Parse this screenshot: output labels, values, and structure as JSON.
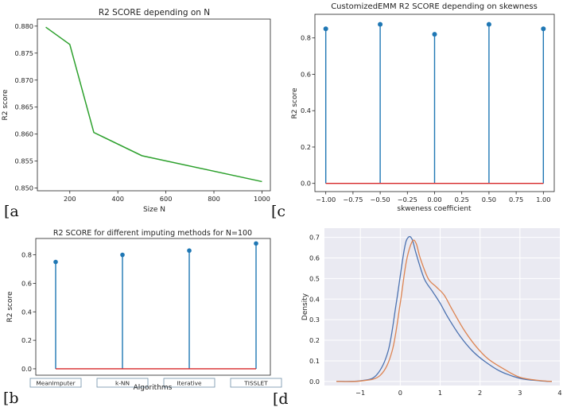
{
  "chart_data": [
    {
      "type": "line",
      "label": "[a",
      "title": "R2 SCORE depending on N",
      "xlabel": "Size N",
      "ylabel": "R2 score",
      "xlim": [
        65,
        1035
      ],
      "ylim": [
        0.8495,
        0.8813
      ],
      "xticks": [
        200,
        400,
        600,
        800,
        1000
      ],
      "yticks": [
        0.85,
        0.855,
        0.86,
        0.865,
        0.87,
        0.875,
        0.88
      ],
      "ytick_labels": [
        "0.850",
        "0.855",
        "0.860",
        "0.865",
        "0.870",
        "0.875",
        "0.880"
      ],
      "colors": {
        "line": "#2ca02c"
      },
      "series": [
        {
          "x": [
            100,
            200,
            300,
            500,
            1000
          ],
          "values": [
            0.8798,
            0.8766,
            0.8603,
            0.856,
            0.8512
          ]
        }
      ]
    },
    {
      "type": "stem",
      "label": "[c",
      "title": "CustomizedEMM R2 SCORE depending on skewness",
      "xlabel": "skweness coefficient",
      "ylabel": "R2 score",
      "xlim": [
        -1.1,
        1.1
      ],
      "ylim": [
        -0.045,
        0.93
      ],
      "xticks": [
        -1.0,
        -0.75,
        -0.5,
        -0.25,
        0.0,
        0.25,
        0.5,
        0.75,
        1.0
      ],
      "xtick_labels": [
        "−1.00",
        "−0.75",
        "−0.50",
        "−0.25",
        "0.00",
        "0.25",
        "0.50",
        "0.75",
        "1.00"
      ],
      "yticks": [
        0.0,
        0.2,
        0.4,
        0.6,
        0.8
      ],
      "ytick_labels": [
        "0.0",
        "0.2",
        "0.4",
        "0.6",
        "0.8"
      ],
      "colors": {
        "stem": "#1f77b4",
        "baseline": "#d62728"
      },
      "series": [
        {
          "x": [
            -1.0,
            -0.5,
            0.0,
            0.5,
            1.0
          ],
          "values": [
            0.85,
            0.875,
            0.82,
            0.875,
            0.85
          ]
        }
      ]
    },
    {
      "type": "stem",
      "label": "[b",
      "title": "R2 SCORE for different imputing methods for N=100",
      "xlabel": "Algorithms",
      "ylabel": "R2 score",
      "categories": [
        "MeanImputer",
        "k-NN",
        "Iterative",
        "TISSLET"
      ],
      "ylim": [
        -0.045,
        0.915
      ],
      "yticks": [
        0.0,
        0.2,
        0.4,
        0.6,
        0.8
      ],
      "ytick_labels": [
        "0.0",
        "0.2",
        "0.4",
        "0.6",
        "0.8"
      ],
      "colors": {
        "stem": "#1f77b4",
        "baseline": "#d62728"
      },
      "series": [
        {
          "values": [
            0.75,
            0.8,
            0.83,
            0.88
          ]
        }
      ]
    },
    {
      "type": "line",
      "label": "[d",
      "title": "",
      "xlabel": "",
      "ylabel": "Density",
      "xlim": [
        -1.9,
        4.0
      ],
      "ylim": [
        -0.02,
        0.745
      ],
      "xticks": [
        -1,
        0,
        1,
        2,
        3,
        4
      ],
      "xtick_labels": [
        "−1",
        "0",
        "1",
        "2",
        "3",
        "4"
      ],
      "yticks": [
        0.0,
        0.1,
        0.2,
        0.3,
        0.4,
        0.5,
        0.6,
        0.7
      ],
      "ytick_labels": [
        "0.0",
        "0.1",
        "0.2",
        "0.3",
        "0.4",
        "0.5",
        "0.6",
        "0.7"
      ],
      "grid": true,
      "colors": {
        "background": "#eaeaf2"
      },
      "series": [
        {
          "color": "#4c72b0",
          "x": [
            -1.6,
            -1.0,
            -0.6,
            -0.3,
            -0.1,
            0.1,
            0.2,
            0.3,
            0.4,
            0.6,
            0.8,
            1.0,
            1.2,
            1.5,
            1.8,
            2.1,
            2.5,
            3.0,
            3.5,
            3.8
          ],
          "values": [
            0.0,
            0.003,
            0.03,
            0.15,
            0.38,
            0.64,
            0.7,
            0.69,
            0.62,
            0.5,
            0.44,
            0.38,
            0.31,
            0.22,
            0.15,
            0.1,
            0.05,
            0.015,
            0.003,
            0.0
          ]
        },
        {
          "color": "#dd8452",
          "x": [
            -1.6,
            -1.0,
            -0.5,
            -0.2,
            0.0,
            0.15,
            0.3,
            0.4,
            0.5,
            0.7,
            0.9,
            1.1,
            1.3,
            1.6,
            1.9,
            2.2,
            2.6,
            3.0,
            3.5,
            3.8
          ],
          "values": [
            0.0,
            0.002,
            0.03,
            0.15,
            0.38,
            0.58,
            0.68,
            0.67,
            0.6,
            0.5,
            0.46,
            0.42,
            0.35,
            0.25,
            0.17,
            0.11,
            0.06,
            0.02,
            0.004,
            0.0
          ]
        }
      ]
    }
  ]
}
